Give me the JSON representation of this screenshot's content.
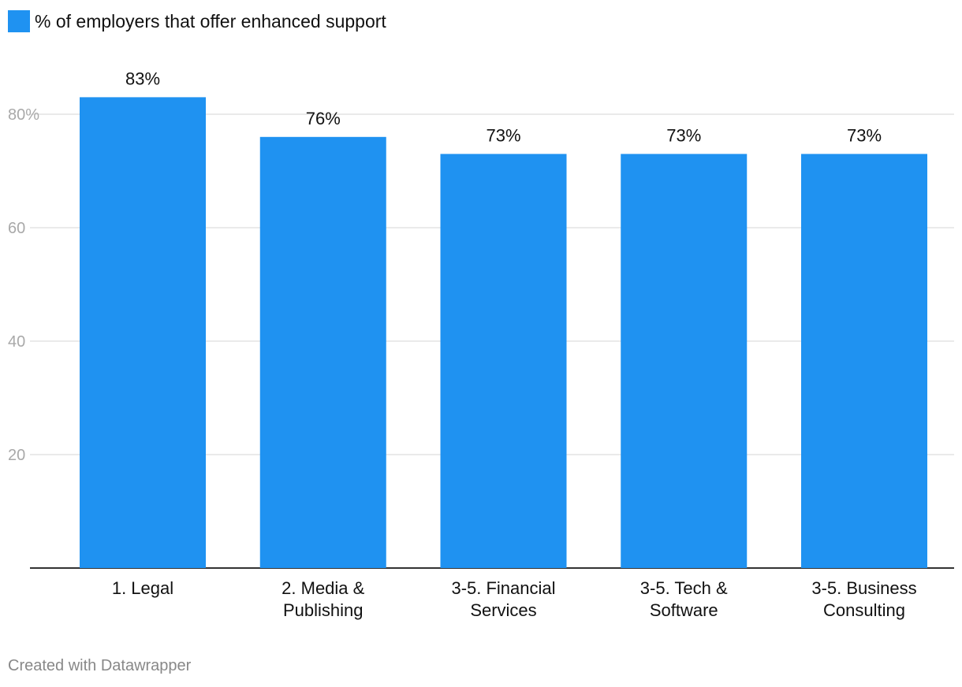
{
  "legend": {
    "label": "% of employers that offer enhanced support"
  },
  "footer": {
    "credit": "Created with Datawrapper"
  },
  "colors": {
    "bar": "#1f92f1",
    "grid": "#e4e4e4",
    "baseline": "#333333",
    "tick_text": "#a9a9a9",
    "text": "#111111"
  },
  "chart_data": {
    "type": "bar",
    "title": "",
    "xlabel": "",
    "ylabel": "",
    "ylim": [
      0,
      100
    ],
    "yticks": [
      20,
      40,
      60,
      80
    ],
    "ytick_labels": [
      "20",
      "40",
      "60",
      "80%"
    ],
    "categories": [
      [
        "1. Legal"
      ],
      [
        "2. Media &",
        "Publishing"
      ],
      [
        "3-5. Financial",
        "Services"
      ],
      [
        "3-5. Tech &",
        "Software"
      ],
      [
        "3-5. Business",
        "Consulting"
      ]
    ],
    "values": [
      83,
      76,
      73,
      73,
      73
    ],
    "value_labels": [
      "83%",
      "76%",
      "73%",
      "73%",
      "73%"
    ],
    "series": [
      {
        "name": "% of employers that offer enhanced support",
        "values": [
          83,
          76,
          73,
          73,
          73
        ]
      }
    ],
    "grid": true,
    "legend_position": "top-left"
  }
}
